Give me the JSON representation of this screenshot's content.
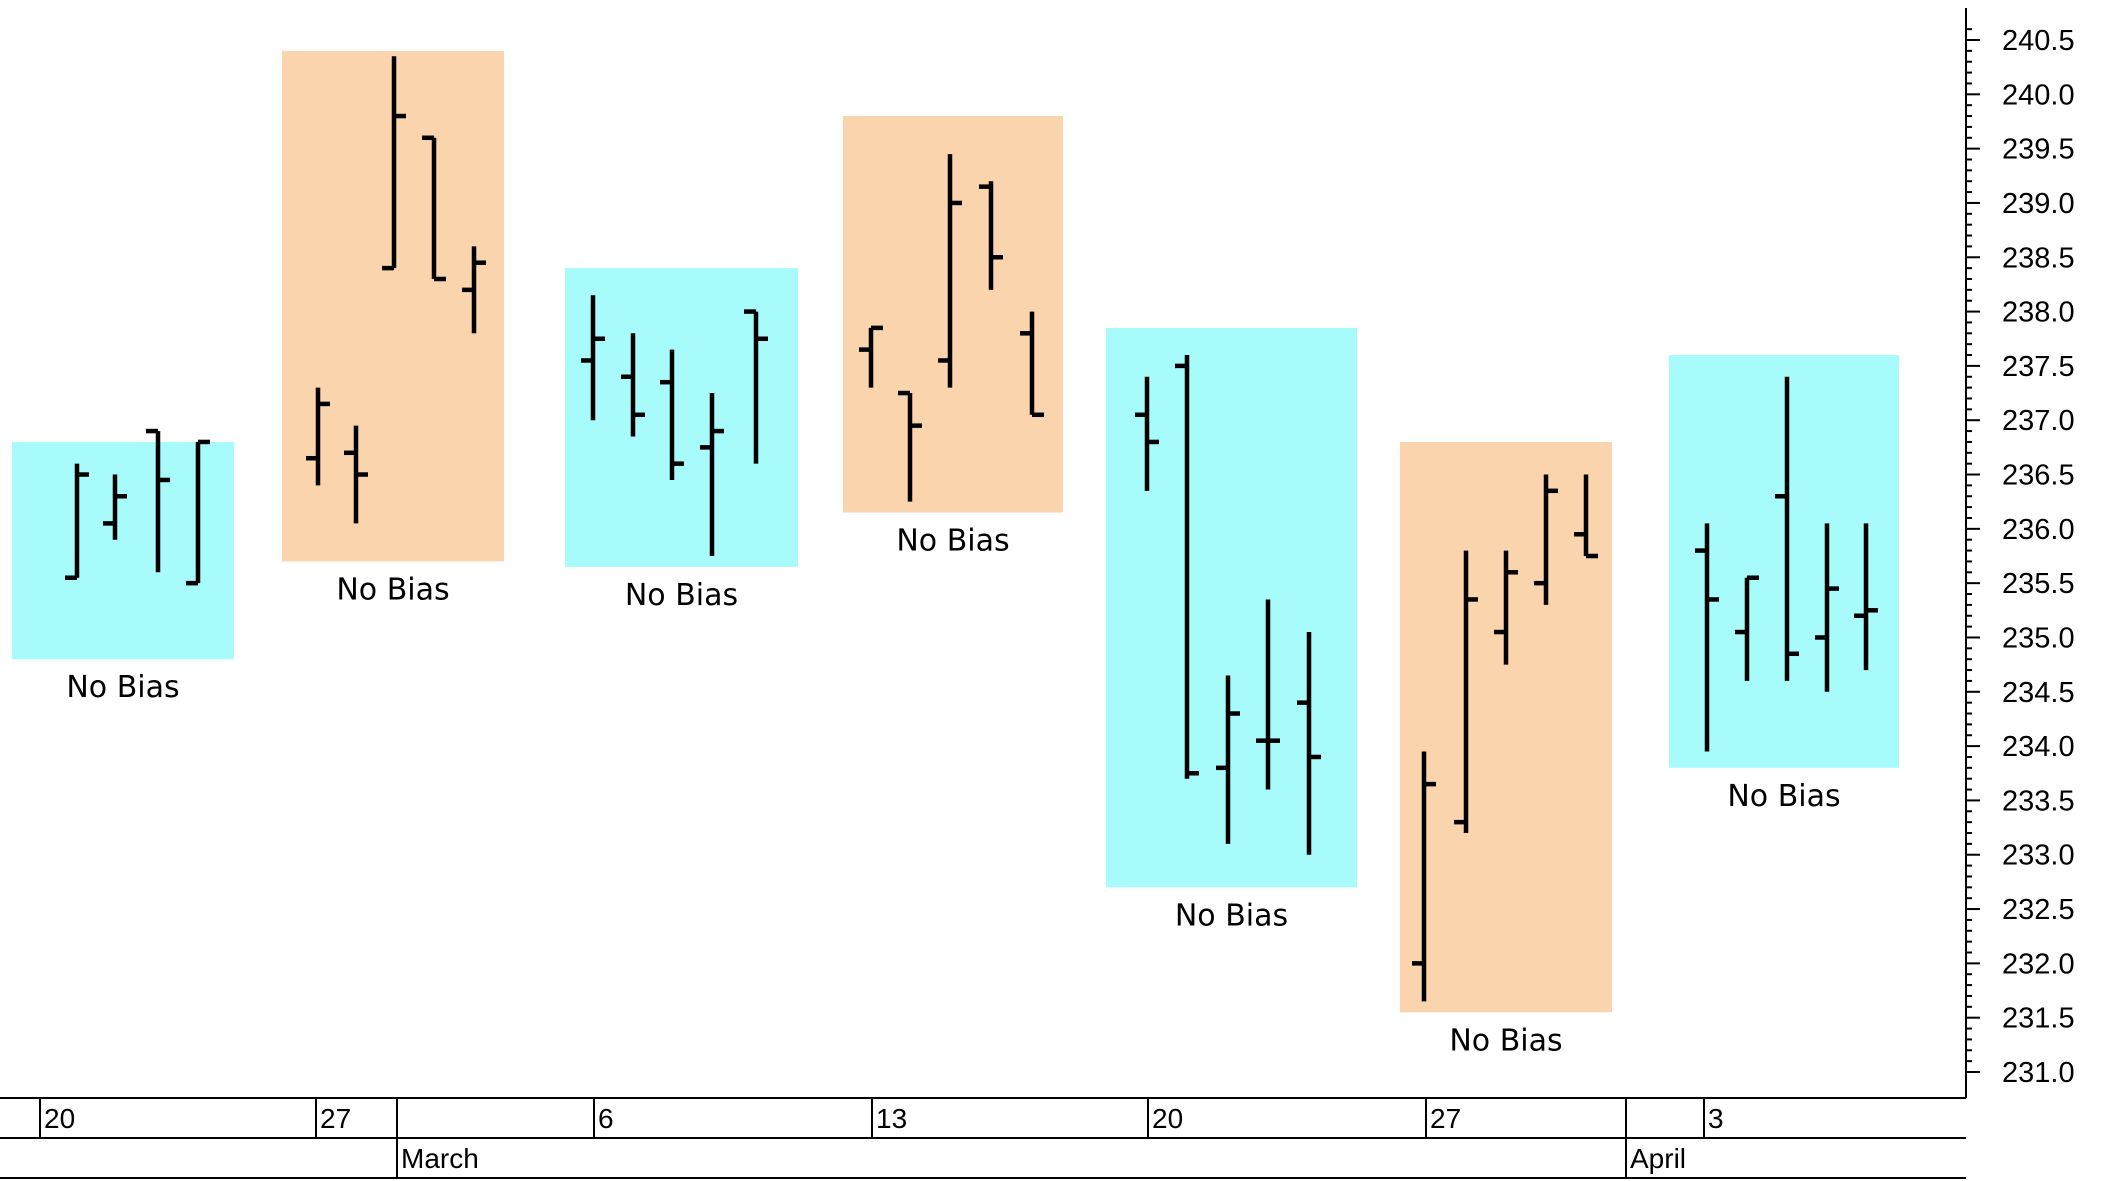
{
  "chart_data": {
    "type": "ohlc",
    "y_axis": {
      "min": 231.0,
      "max": 240.5,
      "ticks": [
        "231.0",
        "231.5",
        "232.0",
        "232.5",
        "233.0",
        "233.5",
        "234.0",
        "234.5",
        "235.0",
        "235.5",
        "236.0",
        "236.5",
        "237.0",
        "237.5",
        "238.0",
        "238.5",
        "239.0",
        "239.5",
        "240.0",
        "240.5"
      ],
      "position": "right"
    },
    "x_axis": {
      "day_ticks": [
        "20",
        "27",
        "6",
        "13",
        "20",
        "27",
        "3"
      ],
      "months": [
        "March",
        "April"
      ]
    },
    "grid": false,
    "zones": [
      {
        "label": "No Bias",
        "color": "#a8fbfb",
        "range": [
          236.8,
          234.8
        ],
        "bars": [
          {
            "open": 235.55,
            "high": 236.6,
            "low": 235.55,
            "close": 236.5
          },
          {
            "open": 236.05,
            "high": 236.5,
            "low": 235.9,
            "close": 236.3
          },
          {
            "open": 236.9,
            "high": 236.9,
            "low": 235.6,
            "close": 236.45
          },
          {
            "open": 235.5,
            "high": 236.8,
            "low": 235.5,
            "close": 236.8
          }
        ]
      },
      {
        "label": "No Bias",
        "color": "#fad4ac",
        "range": [
          240.4,
          235.7
        ],
        "bars": [
          {
            "open": 236.65,
            "high": 237.3,
            "low": 236.4,
            "close": 237.15
          },
          {
            "open": 236.7,
            "high": 236.95,
            "low": 236.05,
            "close": 236.5
          },
          {
            "open": 238.4,
            "high": 240.35,
            "low": 238.4,
            "close": 239.8
          },
          {
            "open": 239.6,
            "high": 239.6,
            "low": 238.3,
            "close": 238.3
          },
          {
            "open": 238.2,
            "high": 238.6,
            "low": 237.8,
            "close": 238.45
          }
        ]
      },
      {
        "label": "No Bias",
        "color": "#a8fbfb",
        "range": [
          238.4,
          235.65
        ],
        "bars": [
          {
            "open": 237.55,
            "high": 238.15,
            "low": 237.0,
            "close": 237.75
          },
          {
            "open": 237.4,
            "high": 237.8,
            "low": 236.85,
            "close": 237.05
          },
          {
            "open": 237.35,
            "high": 237.65,
            "low": 236.45,
            "close": 236.6
          },
          {
            "open": 236.75,
            "high": 237.25,
            "low": 235.75,
            "close": 236.9
          },
          {
            "open": 238.0,
            "high": 238.0,
            "low": 236.6,
            "close": 237.75
          }
        ]
      },
      {
        "label": "No Bias",
        "color": "#fad4ac",
        "range": [
          239.8,
          236.15
        ],
        "bars": [
          {
            "open": 237.65,
            "high": 237.85,
            "low": 237.3,
            "close": 237.85
          },
          {
            "open": 237.25,
            "high": 237.25,
            "low": 236.25,
            "close": 236.95
          },
          {
            "open": 237.55,
            "high": 239.45,
            "low": 237.3,
            "close": 239.0
          },
          {
            "open": 239.15,
            "high": 239.2,
            "low": 238.2,
            "close": 238.5
          },
          {
            "open": 237.8,
            "high": 238.0,
            "low": 237.05,
            "close": 237.05
          }
        ]
      },
      {
        "label": "No Bias",
        "color": "#a8fbfb",
        "range": [
          237.85,
          232.7
        ],
        "bars": [
          {
            "open": 237.05,
            "high": 237.4,
            "low": 236.35,
            "close": 236.8
          },
          {
            "open": 237.5,
            "high": 237.6,
            "low": 233.7,
            "close": 233.75
          },
          {
            "open": 233.8,
            "high": 234.65,
            "low": 233.1,
            "close": 234.3
          },
          {
            "open": 234.05,
            "high": 235.35,
            "low": 233.6,
            "close": 234.05
          },
          {
            "open": 234.4,
            "high": 235.05,
            "low": 233.0,
            "close": 233.9
          }
        ]
      },
      {
        "label": "No Bias",
        "color": "#fad4ac",
        "range": [
          236.8,
          231.55
        ],
        "bars": [
          {
            "open": 232.0,
            "high": 233.95,
            "low": 231.65,
            "close": 233.65
          },
          {
            "open": 233.3,
            "high": 235.8,
            "low": 233.2,
            "close": 235.35
          },
          {
            "open": 235.05,
            "high": 235.8,
            "low": 234.75,
            "close": 235.6
          },
          {
            "open": 235.5,
            "high": 236.5,
            "low": 235.3,
            "close": 236.35
          },
          {
            "open": 235.95,
            "high": 236.5,
            "low": 235.75,
            "close": 235.75
          }
        ]
      },
      {
        "label": "No Bias",
        "color": "#a8fbfb",
        "range": [
          237.6,
          233.8
        ],
        "bars": [
          {
            "open": 235.8,
            "high": 236.05,
            "low": 233.95,
            "close": 235.35
          },
          {
            "open": 235.05,
            "high": 235.55,
            "low": 234.6,
            "close": 235.55
          },
          {
            "open": 236.3,
            "high": 237.4,
            "low": 234.6,
            "close": 234.85
          },
          {
            "open": 235.0,
            "high": 236.05,
            "low": 234.5,
            "close": 235.45
          },
          {
            "open": 235.2,
            "high": 236.05,
            "low": 234.7,
            "close": 235.25
          }
        ]
      }
    ]
  }
}
